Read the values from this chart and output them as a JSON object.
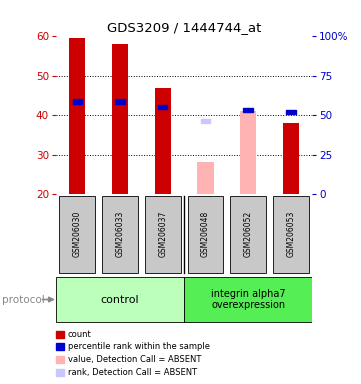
{
  "title": "GDS3209 / 1444744_at",
  "samples": [
    "GSM206030",
    "GSM206033",
    "GSM206037",
    "GSM206048",
    "GSM206052",
    "GSM206053"
  ],
  "bar_bottom": 20,
  "bar_values": [
    59.5,
    58.0,
    47.0,
    28.0,
    41.0,
    38.0
  ],
  "bar_colors": [
    "#cc0000",
    "#cc0000",
    "#cc0000",
    "#ffb3b3",
    "#ffb3b3",
    "#cc0000"
  ],
  "rank_values": [
    43.5,
    43.5,
    42.0,
    38.5,
    41.3,
    40.8
  ],
  "rank_absent": [
    false,
    false,
    false,
    true,
    false,
    false
  ],
  "ylim_left": [
    20,
    60
  ],
  "ylim_right": [
    0,
    100
  ],
  "yticks_left": [
    20,
    30,
    40,
    50,
    60
  ],
  "yticks_right": [
    0,
    25,
    50,
    75,
    100
  ],
  "ytick_labels_right": [
    "0",
    "25",
    "50",
    "75",
    "100%"
  ],
  "left_tick_color": "#cc0000",
  "right_tick_color": "#0000cc",
  "bg_sample": "#c8c8c8",
  "bg_group_control": "#bbffbb",
  "bg_group_integrin": "#55ee55",
  "legend_items": [
    {
      "color": "#cc0000",
      "label": "count"
    },
    {
      "color": "#0000cc",
      "label": "percentile rank within the sample"
    },
    {
      "color": "#ffb3b3",
      "label": "value, Detection Call = ABSENT"
    },
    {
      "color": "#c8c8ff",
      "label": "rank, Detection Call = ABSENT"
    }
  ]
}
